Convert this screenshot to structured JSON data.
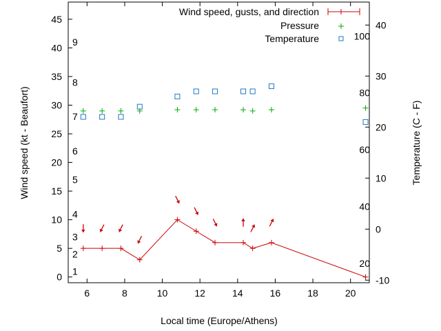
{
  "chart_data": {
    "type": "line",
    "xlabel": "Local time (Europe/Athens)",
    "ylabel": "Wind speed (kt - Beaufort)",
    "y2label": "Temperature (C - F)",
    "xlim": [
      5,
      21
    ],
    "ylim": [
      -1,
      48
    ],
    "y2lim": [
      -10.5,
      44.5
    ],
    "x_ticks": [
      6,
      8,
      10,
      12,
      14,
      16,
      18,
      20
    ],
    "y_ticks": [
      0,
      5,
      10,
      15,
      20,
      25,
      30,
      35,
      40,
      45
    ],
    "y2_ticks": [
      -10,
      0,
      10,
      20,
      30,
      40
    ],
    "beaufort_labels": [
      {
        "label": "1",
        "y": 1
      },
      {
        "label": "2",
        "y": 4
      },
      {
        "label": "3",
        "y": 7
      },
      {
        "label": "4",
        "y": 11
      },
      {
        "label": "5",
        "y": 17
      },
      {
        "label": "6",
        "y": 22
      },
      {
        "label": "7",
        "y": 28
      },
      {
        "label": "8",
        "y": 34
      },
      {
        "label": "9",
        "y": 41
      }
    ],
    "fahrenheit_labels": [
      {
        "label": "20",
        "temp": -6.7
      },
      {
        "label": "40",
        "temp": 4.4
      },
      {
        "label": "60",
        "temp": 15.6
      },
      {
        "label": "80",
        "temp": 26.7
      },
      {
        "label": "100",
        "temp": 37.8
      }
    ],
    "legend": {
      "position": "top-right",
      "entries": [
        "Wind speed, gusts, and direction",
        "Pressure",
        "Temperature"
      ]
    },
    "series": [
      {
        "name": "Wind speed, gusts, and direction",
        "color": "#cc0000",
        "marker": "plus-line",
        "x": [
          5.8,
          6.8,
          7.8,
          8.8,
          10.8,
          11.8,
          12.8,
          14.3,
          14.8,
          15.8,
          20.8
        ],
        "y": [
          5,
          5,
          5,
          3,
          10,
          8,
          6,
          6,
          5,
          6,
          0
        ]
      },
      {
        "name": "Pressure",
        "color": "#00aa00",
        "marker": "plus",
        "x": [
          5.8,
          6.8,
          7.8,
          8.8,
          10.8,
          11.8,
          12.8,
          14.3,
          14.8,
          15.8,
          20.8
        ],
        "y": [
          29.0,
          29.0,
          29.0,
          29.0,
          29.2,
          29.2,
          29.2,
          29.2,
          29.0,
          29.2,
          29.5
        ]
      },
      {
        "name": "Temperature",
        "color": "#1f77c4",
        "marker": "square",
        "x": [
          5.8,
          6.8,
          7.8,
          8.8,
          10.8,
          11.8,
          12.8,
          14.3,
          14.8,
          15.8,
          20.8
        ],
        "y2": [
          22,
          22,
          22,
          24,
          26,
          27,
          27,
          27,
          27,
          28,
          21
        ]
      }
    ],
    "wind_direction_arrows": [
      {
        "x": 5.8,
        "y": 8.5,
        "direction": "down"
      },
      {
        "x": 6.8,
        "y": 8.5,
        "direction": "down-left"
      },
      {
        "x": 7.8,
        "y": 8.5,
        "direction": "down-left"
      },
      {
        "x": 8.8,
        "y": 6.5,
        "direction": "down-left"
      },
      {
        "x": 10.8,
        "y": 13.5,
        "direction": "down-right"
      },
      {
        "x": 11.8,
        "y": 11.5,
        "direction": "down-right"
      },
      {
        "x": 12.8,
        "y": 9.5,
        "direction": "down-right"
      },
      {
        "x": 14.3,
        "y": 9.5,
        "direction": "up"
      },
      {
        "x": 14.8,
        "y": 8.5,
        "direction": "up-right"
      },
      {
        "x": 15.8,
        "y": 9.5,
        "direction": "up-right"
      }
    ]
  }
}
